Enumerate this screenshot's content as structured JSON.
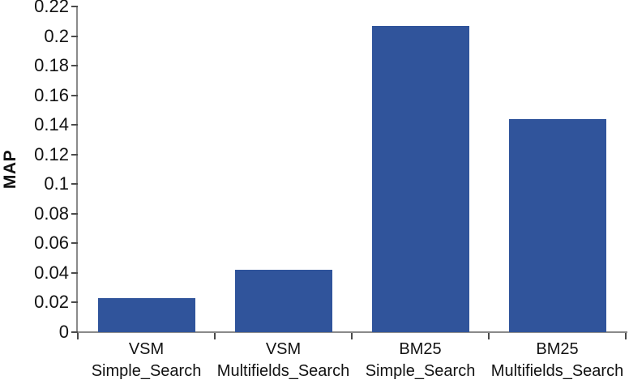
{
  "chart_data": {
    "type": "bar",
    "title": "",
    "xlabel": "",
    "ylabel": "MAP",
    "ylim": [
      0,
      0.22
    ],
    "ytick_step": 0.02,
    "ytick_labels": [
      "0",
      "0.02",
      "0.04",
      "0.06",
      "0.08",
      "0.1",
      "0.12",
      "0.14",
      "0.16",
      "0.18",
      "0.2",
      "0.22"
    ],
    "categories": [
      "VSM\nSimple_Search",
      "VSM\nMultifields_Search",
      "BM25\nSimple_Search",
      "BM25\nMultifields_Search"
    ],
    "values": [
      0.023,
      0.042,
      0.207,
      0.144
    ],
    "bar_color": "#30549B",
    "axis_color": "#8A8A8A",
    "tick_color": "#4A4A4A",
    "text_color": "#121212",
    "grid": false,
    "legend": false
  }
}
